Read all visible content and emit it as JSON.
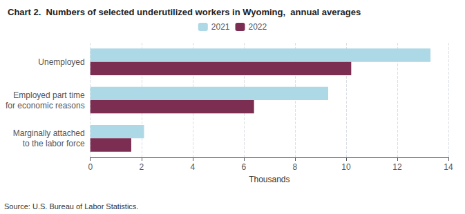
{
  "chart_data": {
    "type": "bar",
    "orientation": "horizontal",
    "title": "Chart 2.  Numbers of selected underutilized workers in Wyoming,  annual averages",
    "categories": [
      "Unemployed",
      "Employed part time\nfor economic reasons",
      "Marginally attached\nto the labor force"
    ],
    "series": [
      {
        "name": "2021",
        "color": "#add8e6",
        "values": [
          13.3,
          9.3,
          2.1
        ]
      },
      {
        "name": "2022",
        "color": "#7b2d52",
        "values": [
          10.2,
          6.4,
          1.6
        ]
      }
    ],
    "xlabel": "Thousands",
    "xlim": [
      0,
      14
    ],
    "xticks": [
      0,
      2,
      4,
      6,
      8,
      10,
      12,
      14
    ],
    "grid": true,
    "legend": "top",
    "annotation": "Source: U.S. Bureau of Labor Statistics."
  }
}
